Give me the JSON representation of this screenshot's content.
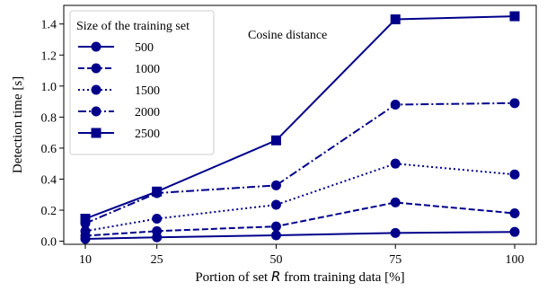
{
  "chart_data": {
    "type": "line",
    "title": "",
    "annotation": "Cosine distance",
    "xlabel": "Portion of set R from training data [%]",
    "ylabel": "Detection time [s]",
    "x": [
      10,
      25,
      50,
      75,
      100
    ],
    "x_ticks": [
      "10",
      "25",
      "50",
      "75",
      "100"
    ],
    "y_ticks": [
      "0.0",
      "0.2",
      "0.4",
      "0.6",
      "0.8",
      "1.0",
      "1.2",
      "1.4"
    ],
    "ylim": [
      -0.02,
      1.52
    ],
    "grid": false,
    "legend": {
      "title": "Size of the training set",
      "placement": "top-left"
    },
    "color": "#00008B",
    "series": [
      {
        "name": "500",
        "linestyle": "solid",
        "marker": "circle",
        "values": [
          0.015,
          0.025,
          0.038,
          0.053,
          0.06
        ]
      },
      {
        "name": "1000",
        "linestyle": "dashed",
        "marker": "circle",
        "values": [
          0.035,
          0.065,
          0.095,
          0.25,
          0.18
        ]
      },
      {
        "name": "1500",
        "linestyle": "dotted",
        "marker": "circle",
        "values": [
          0.065,
          0.145,
          0.235,
          0.5,
          0.43
        ]
      },
      {
        "name": "2000",
        "linestyle": "dashdot",
        "marker": "circle",
        "values": [
          0.115,
          0.31,
          0.36,
          0.88,
          0.89
        ]
      },
      {
        "name": "2500",
        "linestyle": "solid",
        "marker": "square",
        "values": [
          0.145,
          0.32,
          0.65,
          1.43,
          1.45
        ]
      }
    ]
  }
}
